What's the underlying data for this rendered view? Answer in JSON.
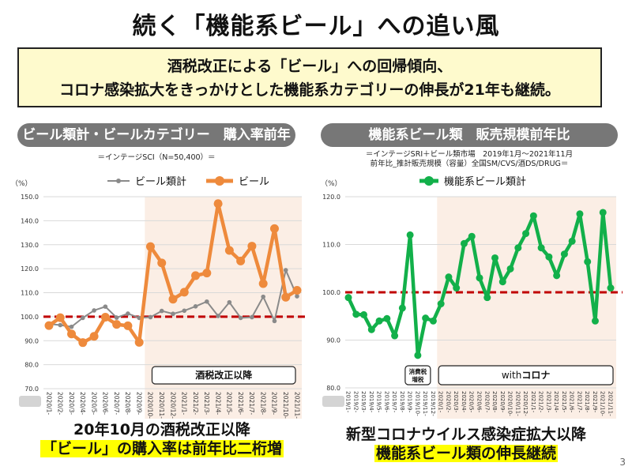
{
  "title": "続く「機能系ビール」への追い風",
  "summary": {
    "line1": "酒税改正による「ビール」への回帰傾向、",
    "line2": "コロナ感染拡大をきっかけとした機能系カテゴリーの伸長が21年も継続。"
  },
  "left_panel": {
    "header": "ビール類計・ビールカテゴリー　購入率前年比",
    "source": "＝インテージSCI（N=50,400）＝",
    "unit": "（%）",
    "legend": [
      "ビール類計",
      "ビール"
    ],
    "annotation": "酒税改正以降",
    "caption_line1": "20年10月の酒税改正以降",
    "caption_line2": "「ビール」の購入率は前年比二桁増"
  },
  "right_panel": {
    "header": "機能系ビール類　販売規模前年比",
    "source_line1": "＝インテージSRI＋ビール類市場　2019年1月～2021年11月",
    "source_line2": "前年比_推計販売規模（容量）全国SM/CVS/酒DS/DRUG＝",
    "unit": "（%）",
    "legend": [
      "機能系ビール類計"
    ],
    "annotation_tax": "消費税\n増税",
    "annotation_tax_line1": "消費税",
    "annotation_tax_line2": "増税",
    "annotation_corona_prefix": "with",
    "annotation_corona_suffix": "コロナ",
    "caption_line1": "新型コロナウイルス感染症拡大以降",
    "caption_line2": "機能系ビール類の伸長継続"
  },
  "page_number": "3",
  "colors": {
    "orange": "#ee8a3c",
    "gray": "#8a8a8a",
    "green": "#12b04a",
    "reference_line": "#c00000",
    "shade": "#fbeee5",
    "header_bg": "#777777",
    "summary_bg": "#fefacd",
    "highlight": "#ffff00"
  },
  "chart_data": [
    {
      "type": "line",
      "title": "ビール類計・ビールカテゴリー　購入率前年比",
      "xlabel": "",
      "ylabel": "（%）",
      "ylim": [
        70,
        150
      ],
      "yticks": [
        "150.0",
        "140.0",
        "130.0",
        "120.0",
        "110.0",
        "100.0",
        "90.0",
        "80.0",
        "70.0"
      ],
      "ytick_values": [
        150,
        140,
        130,
        120,
        110,
        100,
        90,
        80,
        70
      ],
      "reference_line": 100,
      "shaded_from_index": 9,
      "shade_label": "酒税改正以降",
      "grid": true,
      "legend_position": "top-center",
      "x": [
        "2020/1-",
        "2020/2-",
        "2020/3-",
        "2020/4-",
        "2020/5-",
        "2020/6-",
        "2020/7-",
        "2020/8-",
        "2020/9-",
        "2020/10-",
        "2020/11-",
        "2020/12-",
        "2021/1-",
        "2021/2-",
        "2021/3-",
        "2021/4-",
        "2021/5-",
        "2021/6-",
        "2021/7-",
        "2021/8-",
        "2021/9-",
        "2021/10-",
        "2021/11-"
      ],
      "series": [
        {
          "name": "ビール類計",
          "values": [
            97.0,
            96.5,
            95.8,
            99.5,
            102.6,
            104.2,
            99.6,
            101.3,
            99.5,
            99.8,
            102.4,
            101.2,
            102.5,
            104.3,
            106.3,
            100.3,
            106.0,
            99.5,
            99.8,
            108.3,
            98.2,
            119.4,
            108.5
          ]
        },
        {
          "name": "ビール",
          "values": [
            96.3,
            99.6,
            92.8,
            89.2,
            91.8,
            99.8,
            96.8,
            96.2,
            89.3,
            129.2,
            122.4,
            107.3,
            110.2,
            117.1,
            118.2,
            147.1,
            127.6,
            123.2,
            129.4,
            113.8,
            136.7,
            108.1,
            111.0
          ]
        }
      ]
    },
    {
      "type": "line",
      "title": "機能系ビール類　販売規模前年比",
      "xlabel": "",
      "ylabel": "（%）",
      "ylim": [
        80,
        120
      ],
      "yticks": [
        "120.0",
        "110.0",
        "100.0",
        "90.0",
        "80.0"
      ],
      "ytick_values": [
        120,
        110,
        100,
        90,
        80
      ],
      "reference_line": 100,
      "shaded_from_index": 12,
      "shade_label": "withコロナ",
      "event_label": "消費税増税",
      "grid": true,
      "legend_position": "top-center",
      "x": [
        "2019/1-",
        "2019/2-",
        "2019/3-",
        "2019/4-",
        "2019/5-",
        "2019/6-",
        "2019/7-",
        "2019/8-",
        "2019/9-",
        "2019/10-",
        "2019/11-",
        "2019/12-",
        "2020/1-",
        "2020/2-",
        "2020/3-",
        "2020/4-",
        "2020/5-",
        "2020/6-",
        "2020/7-",
        "2020/8-",
        "2020/9-",
        "2020/10-",
        "2020/11-",
        "2020/12-",
        "2021/1-",
        "2021/2-",
        "2021/3-",
        "2021/4-",
        "2021/5-",
        "2021/6-",
        "2021/7-",
        "2021/8-",
        "2021/9-",
        "2021/10-",
        "2021/11-"
      ],
      "series": [
        {
          "name": "機能系ビール類計",
          "values": [
            98.9,
            95.4,
            95.3,
            92.2,
            94.0,
            94.5,
            90.9,
            96.7,
            112.0,
            86.8,
            94.6,
            94.0,
            97.6,
            103.2,
            100.9,
            110.2,
            111.7,
            103.0,
            98.9,
            107.2,
            102.2,
            104.9,
            109.3,
            112.3,
            116.0,
            109.3,
            107.4,
            103.5,
            108.0,
            110.7,
            116.4,
            106.4,
            94.0,
            116.7,
            100.9
          ]
        }
      ]
    }
  ]
}
